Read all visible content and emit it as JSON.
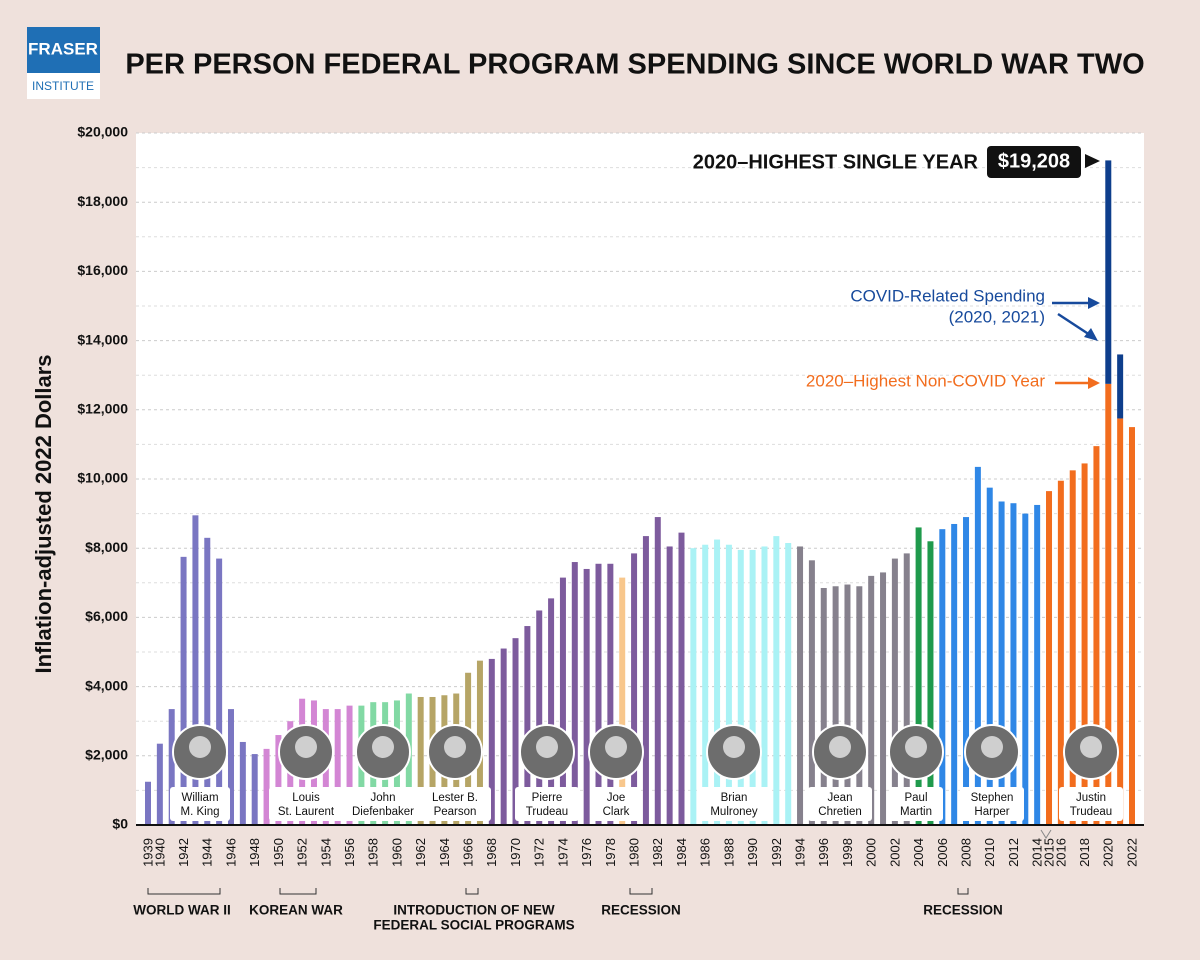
{
  "logo": {
    "name": "FRASER",
    "sub": "INSTITUTE"
  },
  "chart_data": {
    "type": "bar",
    "title": "PER PERSON FEDERAL PROGRAM SPENDING SINCE WORLD WAR TWO",
    "y_label": "Inflation-adjusted 2022 Dollars",
    "categories": [
      "1939",
      "1940",
      null,
      "1942",
      null,
      "1944",
      null,
      "1946",
      null,
      "1948",
      null,
      "1950",
      null,
      "1952",
      null,
      "1954",
      null,
      "1956",
      null,
      "1958",
      null,
      "1960",
      null,
      "1962",
      null,
      "1964",
      null,
      "1966",
      null,
      "1968",
      null,
      "1970",
      null,
      "1972",
      null,
      "1974",
      null,
      "1976",
      null,
      "1978",
      null,
      "1980",
      null,
      "1982",
      null,
      "1984",
      null,
      "1986",
      null,
      "1988",
      null,
      "1990",
      null,
      "1992",
      null,
      "1994",
      null,
      "1996",
      null,
      "1998",
      null,
      "2000",
      null,
      "2002",
      null,
      "2004",
      null,
      "2006",
      null,
      "2008",
      null,
      "2010",
      null,
      "2012",
      null,
      "2014",
      "2015",
      "2016",
      null,
      "2018",
      null,
      "2020",
      null,
      "2022"
    ],
    "values": [
      1250,
      2350,
      3350,
      7750,
      8950,
      8300,
      7700,
      3350,
      2400,
      2050,
      2200,
      2600,
      3000,
      3650,
      3600,
      3350,
      3350,
      3450,
      3450,
      3550,
      3550,
      3600,
      3800,
      3700,
      3700,
      3750,
      3800,
      4400,
      4750,
      4800,
      5100,
      5400,
      5750,
      6200,
      6550,
      7150,
      7600,
      7400,
      7550,
      7550,
      7150,
      7850,
      8350,
      8900,
      8050,
      8450,
      8000,
      8100,
      8250,
      8100,
      7950,
      7950,
      8050,
      8350,
      8150,
      8050,
      7650,
      6850,
      6900,
      6950,
      6900,
      7200,
      7300,
      7700,
      7850,
      8600,
      8200,
      8550,
      8700,
      8900,
      10350,
      9750,
      9350,
      9300,
      9000,
      9250,
      9650,
      9950,
      10250,
      10450,
      10950,
      12750,
      11750,
      11500
    ],
    "covid_values": [
      null,
      null,
      null,
      null,
      null,
      null,
      null,
      null,
      null,
      null,
      null,
      null,
      null,
      null,
      null,
      null,
      null,
      null,
      null,
      null,
      null,
      null,
      null,
      null,
      null,
      null,
      null,
      null,
      null,
      null,
      null,
      null,
      null,
      null,
      null,
      null,
      null,
      null,
      null,
      null,
      null,
      null,
      null,
      null,
      null,
      null,
      null,
      null,
      null,
      null,
      null,
      null,
      null,
      null,
      null,
      null,
      null,
      null,
      null,
      null,
      null,
      null,
      null,
      null,
      null,
      null,
      null,
      null,
      null,
      null,
      null,
      null,
      null,
      null,
      null,
      null,
      null,
      null,
      null,
      null,
      null,
      6458,
      1850,
      null
    ],
    "covid_color": "#0e3e8c",
    "bar_colors": [
      "#7a76c2",
      "#7a76c2",
      "#7a76c2",
      "#7a76c2",
      "#7a76c2",
      "#7a76c2",
      "#7a76c2",
      "#7a76c2",
      "#7a76c2",
      "#7a76c2",
      "#d386d4",
      "#d386d4",
      "#d386d4",
      "#d386d4",
      "#d386d4",
      "#d386d4",
      "#d386d4",
      "#d386d4",
      "#82d9a4",
      "#82d9a4",
      "#82d9a4",
      "#82d9a4",
      "#82d9a4",
      "#b6a566",
      "#b6a566",
      "#b6a566",
      "#b6a566",
      "#b6a566",
      "#b6a566",
      "#7d5b9d",
      "#7d5b9d",
      "#7d5b9d",
      "#7d5b9d",
      "#7d5b9d",
      "#7d5b9d",
      "#7d5b9d",
      "#7d5b9d",
      "#7d5b9d",
      "#7d5b9d",
      "#7d5b9d",
      "#f8c78c",
      "#7d5b9d",
      "#7d5b9d",
      "#7d5b9d",
      "#7d5b9d",
      "#7d5b9d",
      "#aaf2f5",
      "#aaf2f5",
      "#aaf2f5",
      "#aaf2f5",
      "#aaf2f5",
      "#aaf2f5",
      "#aaf2f5",
      "#aaf2f5",
      "#aaf2f5",
      "#86818d",
      "#86818d",
      "#86818d",
      "#86818d",
      "#86818d",
      "#86818d",
      "#86818d",
      "#86818d",
      "#86818d",
      "#86818d",
      "#1f9a4c",
      "#1f9a4c",
      "#2f87e6",
      "#2f87e6",
      "#2f87e6",
      "#2f87e6",
      "#2f87e6",
      "#2f87e6",
      "#2f87e6",
      "#2f87e6",
      "#2f87e6",
      "#f26d1e",
      "#f26d1e",
      "#f26d1e",
      "#f26d1e",
      "#f26d1e",
      "#f26d1e",
      "#f26d1e",
      "#f26d1e"
    ],
    "ylim": [
      0,
      20000
    ],
    "yticks": [
      {
        "value": 0,
        "label": "$0"
      },
      {
        "value": 2000,
        "label": "$2,000"
      },
      {
        "value": 4000,
        "label": "$4,000"
      },
      {
        "value": 6000,
        "label": "$6,000"
      },
      {
        "value": 8000,
        "label": "$8,000"
      },
      {
        "value": 10000,
        "label": "$10,000"
      },
      {
        "value": 12000,
        "label": "$12,000"
      },
      {
        "value": 14000,
        "label": "$14,000"
      },
      {
        "value": 16000,
        "label": "$16,000"
      },
      {
        "value": 18000,
        "label": "$18,000"
      },
      {
        "value": 20000,
        "label": "$20,000"
      }
    ],
    "minor_yticks": [
      1000,
      3000,
      5000,
      7000,
      9000,
      11000,
      13000,
      15000,
      17000,
      19000
    ],
    "grid": true,
    "prime_ministers": [
      [
        "William",
        "M. King"
      ],
      [
        "Louis",
        "St. Laurent"
      ],
      [
        "John",
        "Diefenbaker"
      ],
      [
        "Lester B.",
        "Pearson"
      ],
      [
        "Pierre",
        "Trudeau"
      ],
      [
        "Joe",
        "Clark"
      ],
      [
        "Brian",
        "Mulroney"
      ],
      [
        "Jean",
        "Chretien"
      ],
      [
        "Paul",
        "Martin"
      ],
      [
        "Stephen",
        "Harper"
      ],
      [
        "Justin",
        "Trudeau"
      ]
    ],
    "periods": [
      [
        "WORLD WAR II"
      ],
      [
        "KOREAN WAR"
      ],
      [
        "INTRODUCTION OF NEW",
        "FEDERAL SOCIAL PROGRAMS"
      ],
      [
        "RECESSION"
      ],
      [
        "RECESSION"
      ]
    ],
    "annotations": {
      "highest": "2020–HIGHEST SINGLE YEAR",
      "highest_value": "$19,208",
      "covid": [
        "COVID-Related Spending",
        "(2020, 2021)"
      ],
      "non_covid": "2020–Highest Non-COVID Year"
    }
  }
}
